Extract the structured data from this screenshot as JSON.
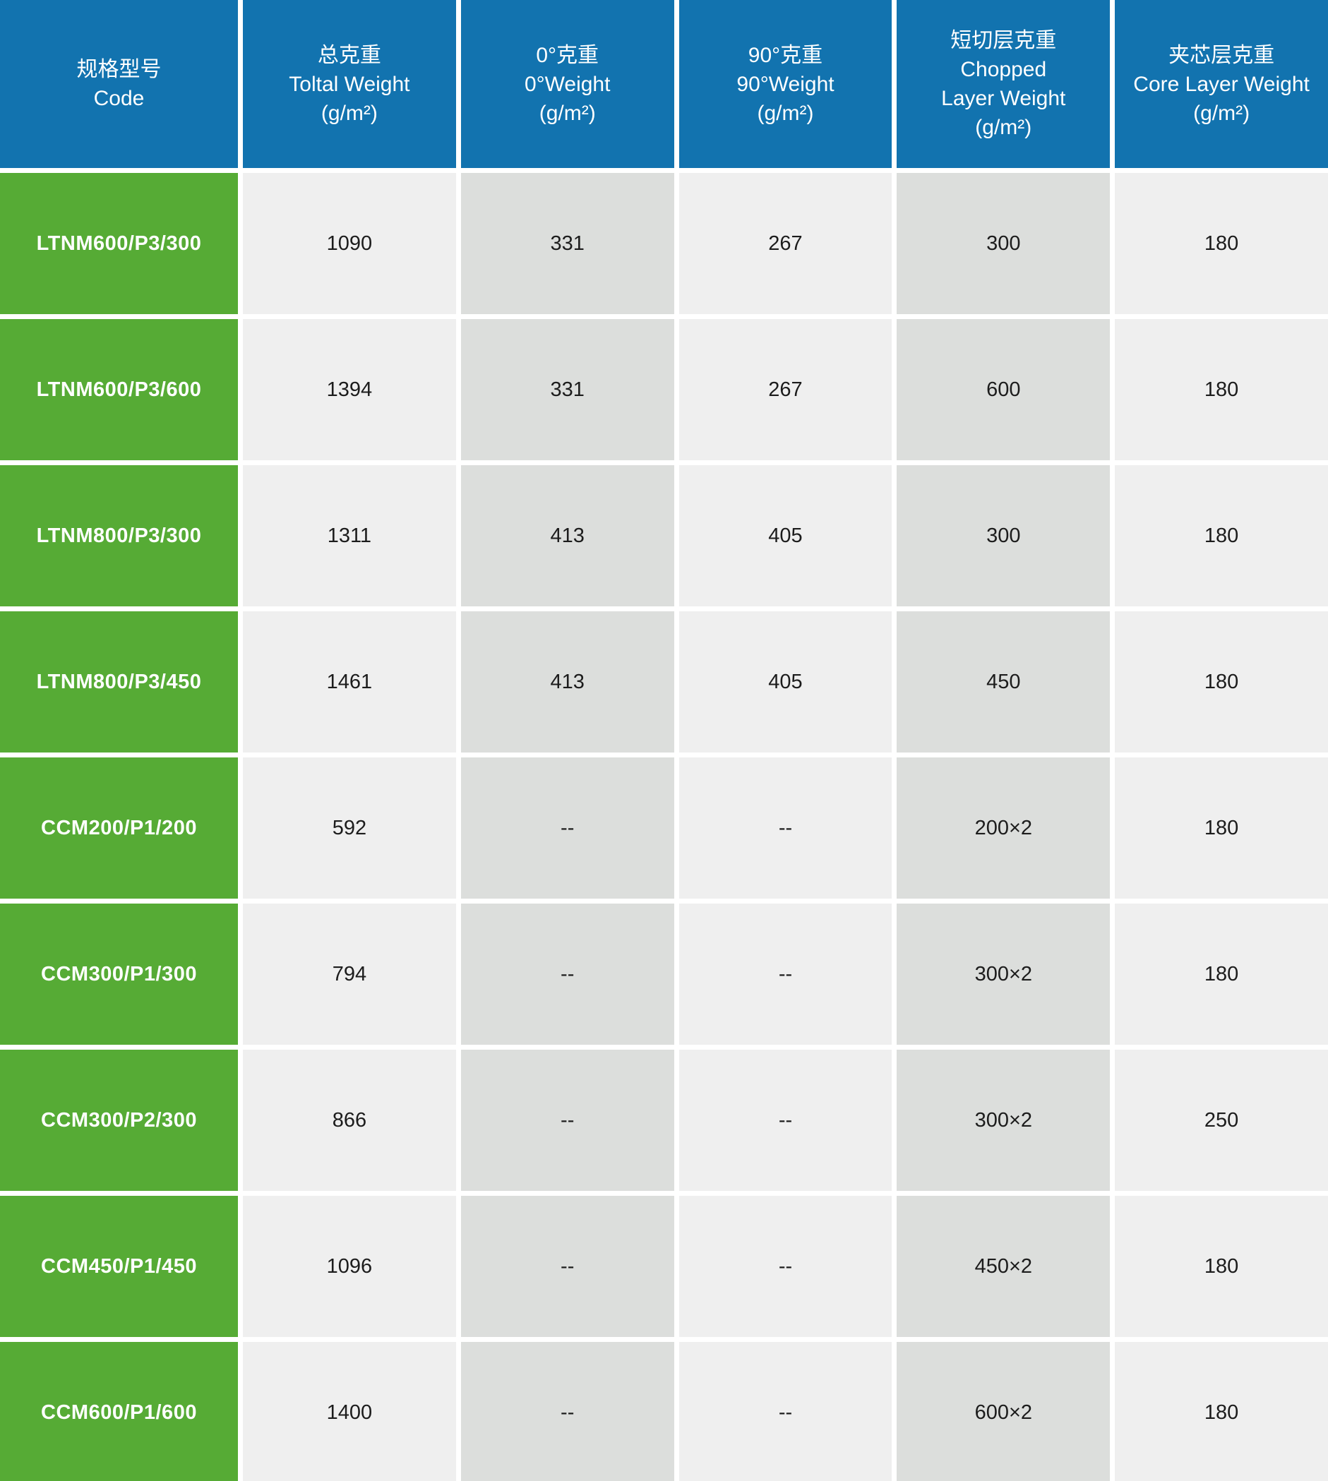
{
  "chart_data": {
    "type": "table",
    "columns": [
      {
        "key": "code",
        "zh": "规格型号",
        "en": "Code",
        "unit": ""
      },
      {
        "key": "total",
        "zh": "总克重",
        "en": "Toltal Weight",
        "unit": "(g/m²)"
      },
      {
        "key": "deg0",
        "zh": "0°克重",
        "en": "0°Weight",
        "unit": "(g/m²)"
      },
      {
        "key": "deg90",
        "zh": "90°克重",
        "en": "90°Weight",
        "unit": "(g/m²)"
      },
      {
        "key": "chopped",
        "zh": "短切层克重",
        "en": "Chopped\nLayer Weight",
        "unit": "(g/m²)"
      },
      {
        "key": "core",
        "zh": "夹芯层克重",
        "en": "Core Layer Weight",
        "unit": "(g/m²)"
      }
    ],
    "rows": [
      {
        "code": "LTNM600/P3/300",
        "total": "1090",
        "deg0": "331",
        "deg90": "267",
        "chopped": "300",
        "core": "180"
      },
      {
        "code": "LTNM600/P3/600",
        "total": "1394",
        "deg0": "331",
        "deg90": "267",
        "chopped": "600",
        "core": "180"
      },
      {
        "code": "LTNM800/P3/300",
        "total": "1311",
        "deg0": "413",
        "deg90": "405",
        "chopped": "300",
        "core": "180"
      },
      {
        "code": "LTNM800/P3/450",
        "total": "1461",
        "deg0": "413",
        "deg90": "405",
        "chopped": "450",
        "core": "180"
      },
      {
        "code": "CCM200/P1/200",
        "total": "592",
        "deg0": "--",
        "deg90": "--",
        "chopped": "200×2",
        "core": "180"
      },
      {
        "code": "CCM300/P1/300",
        "total": "794",
        "deg0": "--",
        "deg90": "--",
        "chopped": "300×2",
        "core": "180"
      },
      {
        "code": "CCM300/P2/300",
        "total": "866",
        "deg0": "--",
        "deg90": "--",
        "chopped": "300×2",
        "core": "250"
      },
      {
        "code": "CCM450/P1/450",
        "total": "1096",
        "deg0": "--",
        "deg90": "--",
        "chopped": "450×2",
        "core": "180"
      },
      {
        "code": "CCM600/P1/600",
        "total": "1400",
        "deg0": "--",
        "deg90": "--",
        "chopped": "600×2",
        "core": "180"
      }
    ],
    "layout": {
      "header_bg": "#1273af",
      "code_column_bg": "#56ab35",
      "column_bg_light": "#efefef",
      "column_bg_dark": "#dcdedc",
      "gridline_color": "#ffffff",
      "header_text_color": "#ffffff",
      "data_text_color": "#1c1c1c"
    }
  }
}
